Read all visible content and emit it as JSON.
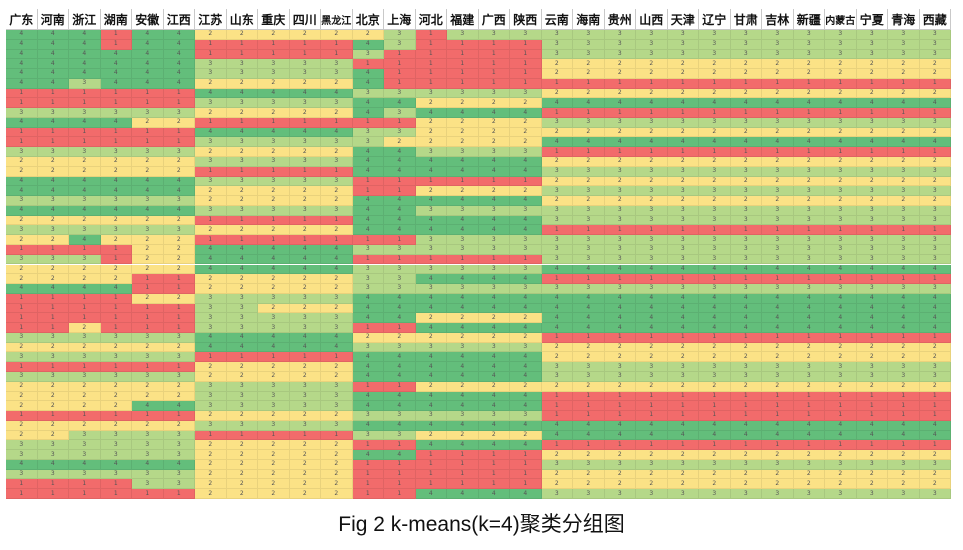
{
  "caption": "Fig 2 k-means(k=4)聚类分组图",
  "chart_data": {
    "type": "heatmap",
    "columns": [
      "广东",
      "河南",
      "浙江",
      "湖南",
      "安徽",
      "江西",
      "江苏",
      "山东",
      "重庆",
      "四川",
      "黑龙江",
      "北京",
      "上海",
      "河北",
      "福建",
      "广西",
      "陕西",
      "云南",
      "海南",
      "贵州",
      "山西",
      "天津",
      "辽宁",
      "甘肃",
      "吉林",
      "新疆",
      "内蒙古",
      "宁夏",
      "青海",
      "西藏"
    ],
    "column_groups": [
      6,
      5,
      6,
      13
    ],
    "cluster_colors": {
      "1": "#f26b6b",
      "2": "#fbe286",
      "3": "#b5d889",
      "4": "#63be7b"
    },
    "rows": [
      [
        4,
        4,
        4,
        1,
        4,
        4,
        2,
        2,
        2,
        2,
        2,
        2,
        3,
        1,
        3,
        3,
        3,
        3,
        3,
        3,
        3,
        3,
        3,
        3,
        3,
        3,
        3,
        3,
        3,
        3
      ],
      [
        4,
        4,
        4,
        1,
        4,
        4,
        1,
        1,
        1,
        1,
        1,
        4,
        3,
        1,
        1,
        1,
        1,
        3,
        3,
        3,
        3,
        3,
        3,
        3,
        3,
        3,
        3,
        3,
        3,
        3
      ],
      [
        4,
        4,
        4,
        4,
        4,
        4,
        1,
        1,
        1,
        1,
        1,
        3,
        1,
        1,
        1,
        1,
        1,
        3,
        3,
        3,
        3,
        3,
        3,
        3,
        3,
        3,
        3,
        3,
        3,
        3
      ],
      [
        4,
        4,
        4,
        4,
        4,
        4,
        3,
        3,
        3,
        3,
        3,
        1,
        1,
        1,
        1,
        1,
        1,
        2,
        2,
        2,
        2,
        2,
        2,
        2,
        2,
        2,
        2,
        2,
        2,
        2
      ],
      [
        4,
        4,
        4,
        4,
        4,
        4,
        3,
        3,
        3,
        3,
        3,
        4,
        1,
        1,
        1,
        1,
        1,
        2,
        2,
        2,
        2,
        2,
        2,
        2,
        2,
        2,
        2,
        2,
        2,
        2
      ],
      [
        4,
        4,
        3,
        4,
        4,
        4,
        2,
        2,
        2,
        2,
        2,
        4,
        1,
        1,
        1,
        1,
        1,
        1,
        1,
        1,
        1,
        1,
        1,
        1,
        1,
        1,
        1,
        1,
        1,
        1
      ],
      [
        1,
        1,
        1,
        1,
        1,
        1,
        4,
        4,
        4,
        4,
        4,
        3,
        3,
        3,
        3,
        3,
        3,
        2,
        2,
        2,
        2,
        2,
        2,
        2,
        2,
        2,
        2,
        2,
        2,
        2
      ],
      [
        1,
        1,
        1,
        1,
        1,
        1,
        3,
        3,
        3,
        3,
        3,
        4,
        4,
        2,
        2,
        2,
        2,
        4,
        4,
        4,
        4,
        4,
        4,
        4,
        4,
        4,
        4,
        4,
        4,
        4
      ],
      [
        3,
        3,
        3,
        3,
        3,
        3,
        2,
        2,
        2,
        2,
        2,
        4,
        3,
        4,
        4,
        4,
        4,
        1,
        1,
        1,
        1,
        1,
        1,
        1,
        1,
        1,
        1,
        1,
        1,
        1
      ],
      [
        4,
        4,
        4,
        4,
        2,
        2,
        1,
        1,
        1,
        1,
        1,
        1,
        1,
        2,
        2,
        2,
        2,
        3,
        3,
        3,
        3,
        3,
        3,
        3,
        3,
        3,
        3,
        3,
        3,
        3
      ],
      [
        1,
        1,
        1,
        1,
        1,
        1,
        4,
        4,
        4,
        4,
        4,
        3,
        3,
        2,
        2,
        2,
        2,
        2,
        2,
        2,
        2,
        2,
        2,
        2,
        2,
        2,
        2,
        2,
        2,
        2
      ],
      [
        1,
        1,
        1,
        1,
        1,
        1,
        3,
        3,
        3,
        3,
        3,
        3,
        2,
        2,
        2,
        2,
        2,
        4,
        4,
        4,
        4,
        4,
        4,
        4,
        4,
        4,
        4,
        4,
        4,
        4
      ],
      [
        3,
        3,
        3,
        3,
        3,
        3,
        2,
        2,
        2,
        2,
        2,
        4,
        4,
        3,
        3,
        3,
        3,
        1,
        1,
        1,
        1,
        1,
        1,
        1,
        1,
        1,
        1,
        1,
        1,
        1
      ],
      [
        2,
        2,
        2,
        2,
        2,
        2,
        3,
        3,
        3,
        3,
        3,
        4,
        4,
        4,
        4,
        4,
        4,
        2,
        2,
        2,
        2,
        2,
        2,
        2,
        2,
        2,
        2,
        2,
        2,
        2
      ],
      [
        2,
        2,
        2,
        2,
        2,
        2,
        1,
        1,
        1,
        1,
        1,
        4,
        4,
        4,
        4,
        4,
        4,
        3,
        3,
        3,
        3,
        3,
        3,
        3,
        3,
        3,
        3,
        3,
        3,
        3
      ],
      [
        4,
        4,
        4,
        4,
        4,
        4,
        3,
        3,
        3,
        3,
        3,
        1,
        1,
        1,
        1,
        1,
        1,
        2,
        2,
        2,
        2,
        2,
        2,
        2,
        2,
        2,
        2,
        2,
        2,
        2
      ],
      [
        4,
        4,
        4,
        4,
        4,
        4,
        2,
        2,
        2,
        2,
        2,
        1,
        1,
        2,
        2,
        2,
        2,
        3,
        3,
        3,
        3,
        3,
        3,
        3,
        3,
        3,
        3,
        3,
        3,
        3
      ],
      [
        3,
        3,
        3,
        3,
        3,
        3,
        2,
        2,
        2,
        2,
        2,
        4,
        4,
        4,
        4,
        4,
        4,
        2,
        2,
        2,
        2,
        2,
        2,
        2,
        2,
        2,
        2,
        2,
        2,
        2
      ],
      [
        4,
        4,
        4,
        4,
        4,
        4,
        3,
        3,
        3,
        3,
        3,
        4,
        4,
        3,
        3,
        3,
        3,
        3,
        3,
        3,
        3,
        3,
        3,
        3,
        3,
        3,
        3,
        3,
        3,
        3
      ],
      [
        2,
        2,
        2,
        2,
        2,
        2,
        1,
        1,
        1,
        1,
        1,
        4,
        4,
        4,
        4,
        4,
        4,
        3,
        3,
        3,
        3,
        3,
        3,
        3,
        3,
        3,
        3,
        3,
        3,
        3
      ],
      [
        3,
        3,
        3,
        3,
        3,
        3,
        2,
        2,
        2,
        2,
        2,
        4,
        4,
        4,
        4,
        4,
        4,
        1,
        1,
        1,
        1,
        1,
        1,
        1,
        1,
        1,
        1,
        1,
        1,
        1
      ],
      [
        2,
        2,
        4,
        2,
        2,
        2,
        1,
        1,
        1,
        1,
        1,
        1,
        1,
        3,
        3,
        3,
        3,
        3,
        3,
        3,
        3,
        3,
        3,
        3,
        3,
        3,
        3,
        3,
        3,
        3
      ],
      [
        1,
        1,
        1,
        1,
        2,
        2,
        4,
        4,
        4,
        4,
        4,
        3,
        3,
        3,
        3,
        3,
        3,
        3,
        3,
        3,
        3,
        3,
        3,
        3,
        3,
        3,
        3,
        3,
        3,
        3
      ],
      [
        3,
        3,
        3,
        1,
        2,
        2,
        4,
        4,
        4,
        4,
        4,
        1,
        1,
        1,
        1,
        1,
        1,
        3,
        3,
        3,
        3,
        3,
        3,
        3,
        3,
        3,
        3,
        3,
        3,
        3
      ],
      [
        2,
        2,
        2,
        2,
        2,
        2,
        4,
        4,
        4,
        4,
        4,
        3,
        3,
        3,
        3,
        3,
        3,
        4,
        4,
        4,
        4,
        4,
        4,
        4,
        4,
        4,
        4,
        4,
        4,
        4
      ],
      [
        2,
        2,
        2,
        2,
        1,
        1,
        2,
        2,
        2,
        2,
        2,
        3,
        3,
        4,
        4,
        4,
        4,
        1,
        1,
        1,
        1,
        1,
        1,
        1,
        1,
        1,
        1,
        1,
        1,
        1
      ],
      [
        4,
        4,
        4,
        4,
        1,
        1,
        2,
        2,
        2,
        2,
        2,
        3,
        3,
        3,
        3,
        3,
        3,
        3,
        3,
        3,
        3,
        3,
        3,
        3,
        3,
        3,
        3,
        3,
        3,
        3
      ],
      [
        1,
        1,
        1,
        1,
        2,
        2,
        3,
        3,
        3,
        3,
        3,
        4,
        4,
        4,
        4,
        4,
        4,
        4,
        4,
        4,
        4,
        4,
        4,
        4,
        4,
        4,
        4,
        4,
        4,
        4
      ],
      [
        1,
        1,
        1,
        1,
        1,
        1,
        3,
        3,
        2,
        2,
        2,
        4,
        4,
        4,
        4,
        4,
        4,
        4,
        4,
        4,
        4,
        4,
        4,
        4,
        4,
        4,
        4,
        4,
        4,
        4
      ],
      [
        1,
        1,
        1,
        1,
        1,
        1,
        3,
        3,
        3,
        3,
        3,
        4,
        4,
        2,
        2,
        2,
        2,
        4,
        4,
        4,
        4,
        4,
        4,
        4,
        4,
        4,
        4,
        4,
        4,
        4
      ],
      [
        1,
        1,
        2,
        1,
        1,
        1,
        3,
        3,
        3,
        3,
        3,
        1,
        1,
        4,
        4,
        4,
        4,
        4,
        4,
        4,
        4,
        4,
        4,
        4,
        4,
        4,
        4,
        4,
        4,
        4
      ],
      [
        3,
        3,
        3,
        3,
        3,
        3,
        4,
        4,
        4,
        4,
        4,
        2,
        2,
        2,
        2,
        2,
        2,
        1,
        1,
        1,
        1,
        1,
        1,
        1,
        1,
        1,
        1,
        1,
        1,
        1
      ],
      [
        2,
        2,
        2,
        2,
        2,
        2,
        4,
        4,
        4,
        4,
        4,
        3,
        3,
        3,
        3,
        3,
        3,
        2,
        2,
        2,
        2,
        2,
        2,
        2,
        2,
        2,
        2,
        2,
        2,
        2
      ],
      [
        3,
        3,
        3,
        3,
        3,
        3,
        1,
        1,
        1,
        1,
        1,
        4,
        4,
        4,
        4,
        4,
        4,
        2,
        2,
        2,
        2,
        2,
        2,
        2,
        2,
        2,
        2,
        2,
        2,
        2
      ],
      [
        1,
        1,
        1,
        1,
        1,
        1,
        2,
        2,
        2,
        2,
        2,
        4,
        4,
        4,
        4,
        4,
        4,
        3,
        3,
        3,
        3,
        3,
        3,
        3,
        3,
        3,
        3,
        3,
        3,
        3
      ],
      [
        3,
        3,
        3,
        3,
        3,
        3,
        2,
        2,
        2,
        2,
        2,
        4,
        4,
        4,
        4,
        4,
        4,
        3,
        3,
        3,
        3,
        3,
        3,
        3,
        3,
        3,
        3,
        3,
        3,
        3
      ],
      [
        2,
        2,
        2,
        2,
        2,
        2,
        3,
        3,
        3,
        3,
        3,
        1,
        1,
        2,
        2,
        2,
        2,
        2,
        2,
        2,
        2,
        2,
        2,
        2,
        2,
        2,
        2,
        2,
        2,
        2
      ],
      [
        2,
        2,
        2,
        2,
        2,
        2,
        3,
        3,
        3,
        3,
        3,
        4,
        4,
        4,
        4,
        4,
        4,
        1,
        1,
        1,
        1,
        1,
        1,
        1,
        1,
        1,
        1,
        1,
        1,
        1
      ],
      [
        2,
        2,
        2,
        2,
        4,
        4,
        3,
        3,
        3,
        3,
        3,
        4,
        4,
        4,
        4,
        4,
        4,
        1,
        1,
        1,
        1,
        1,
        1,
        1,
        1,
        1,
        1,
        1,
        1,
        1
      ],
      [
        1,
        1,
        1,
        1,
        1,
        1,
        2,
        2,
        2,
        2,
        2,
        3,
        3,
        3,
        3,
        3,
        3,
        1,
        1,
        1,
        1,
        1,
        1,
        1,
        1,
        1,
        1,
        1,
        1,
        1
      ],
      [
        2,
        2,
        2,
        2,
        2,
        2,
        3,
        3,
        3,
        3,
        3,
        4,
        4,
        4,
        4,
        4,
        4,
        4,
        4,
        4,
        4,
        4,
        4,
        4,
        4,
        4,
        4,
        4,
        4,
        4
      ],
      [
        2,
        2,
        3,
        3,
        3,
        3,
        1,
        1,
        1,
        1,
        1,
        3,
        3,
        2,
        2,
        2,
        2,
        4,
        4,
        4,
        4,
        4,
        4,
        4,
        4,
        4,
        4,
        4,
        4,
        4
      ],
      [
        3,
        3,
        3,
        3,
        3,
        3,
        2,
        2,
        2,
        2,
        2,
        1,
        1,
        4,
        4,
        4,
        4,
        1,
        1,
        1,
        1,
        1,
        1,
        1,
        1,
        1,
        1,
        1,
        1,
        1
      ],
      [
        3,
        3,
        3,
        3,
        3,
        3,
        2,
        2,
        2,
        2,
        2,
        4,
        4,
        1,
        1,
        1,
        1,
        2,
        2,
        2,
        2,
        2,
        2,
        2,
        2,
        2,
        2,
        2,
        2,
        2
      ],
      [
        4,
        4,
        4,
        4,
        4,
        4,
        2,
        2,
        2,
        2,
        2,
        1,
        1,
        1,
        1,
        1,
        1,
        3,
        3,
        3,
        3,
        3,
        3,
        3,
        3,
        3,
        3,
        3,
        3,
        3
      ],
      [
        3,
        3,
        3,
        3,
        3,
        3,
        2,
        2,
        2,
        2,
        2,
        1,
        1,
        1,
        1,
        1,
        1,
        2,
        2,
        2,
        2,
        2,
        2,
        2,
        2,
        2,
        2,
        2,
        2,
        2
      ],
      [
        1,
        1,
        1,
        1,
        3,
        3,
        2,
        2,
        2,
        2,
        2,
        1,
        1,
        1,
        1,
        1,
        1,
        2,
        2,
        2,
        2,
        2,
        2,
        2,
        2,
        2,
        2,
        2,
        2,
        2
      ],
      [
        1,
        1,
        1,
        1,
        1,
        1,
        2,
        2,
        2,
        2,
        2,
        1,
        1,
        4,
        4,
        4,
        4,
        3,
        3,
        3,
        3,
        3,
        3,
        3,
        3,
        3,
        3,
        3,
        3,
        3
      ]
    ]
  }
}
